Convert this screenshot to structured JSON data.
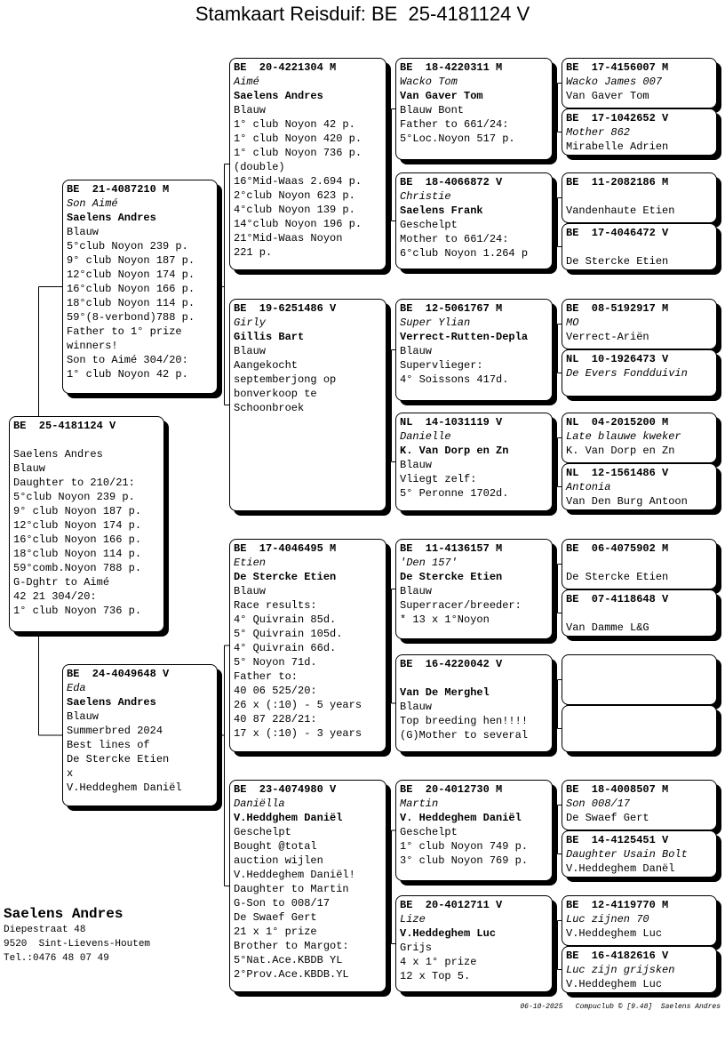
{
  "title": "Stamkaart Reisduif: BE  25-4181124 V",
  "pigeons": [
    {
      "ring": "BE  25-4181124 V",
      "name": "",
      "breeder": "Saelens Andres",
      "color": "Blauw",
      "notes": [
        "Daughter to 210/21:",
        "5°club Noyon 239 p.",
        "9° club Noyon 187 p.",
        "12°club Noyon 174 p.",
        "16°club Noyon 166 p.",
        "18°club Noyon 114 p.",
        "59°comb.Noyon 788 p.",
        "G-Dghtr to Aimé",
        "42 21 304/20:",
        "1° club Noyon 736 p."
      ]
    },
    {
      "ring": "BE  21-4087210 M",
      "name": "Son Aimé",
      "breeder": "Saelens Andres",
      "color": "Blauw",
      "notes": [
        "5°club Noyon 239 p.",
        "9° club Noyon 187 p.",
        "12°club Noyon 174 p.",
        "16°club Noyon 166 p.",
        "18°club Noyon 114 p.",
        "59°(8-verbond)788 p.",
        "Father to 1° prize",
        "winners!",
        "Son to Aimé 304/20:",
        "1° club Noyon 42 p."
      ]
    },
    {
      "ring": "BE  24-4049648 V",
      "name": "Eda",
      "breeder": "Saelens Andres",
      "color": "Blauw",
      "notes": [
        "Summerbred 2024",
        "Best lines of",
        "De Stercke Etien",
        "x",
        "V.Heddeghem Daniël"
      ]
    },
    {
      "ring": "BE  20-4221304 M",
      "name": "Aimé",
      "breeder": "Saelens Andres",
      "color": "Blauw",
      "notes": [
        "1° club Noyon 42 p.",
        "1° club Noyon 420 p.",
        "1° club Noyon 736 p.",
        "(double)",
        "16°Mid-Waas 2.694 p.",
        "2°club Noyon 623 p.",
        "4°club Noyon 139 p.",
        "14°club Noyon 196 p.",
        "21°Mid-Waas Noyon",
        "221 p."
      ]
    },
    {
      "ring": "BE  19-6251486 V",
      "name": "Girly",
      "breeder": "Gillis Bart",
      "color": "Blauw",
      "notes": [
        "Aangekocht",
        "septemberjong op",
        "bonverkoop te",
        "Schoonbroek"
      ]
    },
    {
      "ring": "BE  17-4046495 M",
      "name": "Etien",
      "breeder": "De Stercke Etien",
      "color": "Blauw",
      "notes": [
        "Race results:",
        "4° Quivrain 85d.",
        "5° Quivrain 105d.",
        "4° Quivrain 66d.",
        "5° Noyon 71d.",
        "Father to:",
        "40 06 525/20:",
        "26 x (:10) - 5 years",
        "40 87 228/21:",
        "17 x (:10) - 3 years"
      ]
    },
    {
      "ring": "BE  23-4074980 V",
      "name": "Daniëlla",
      "breeder": "V.Heddghem Daniël",
      "color": "Geschelpt",
      "notes": [
        "Bought @total",
        "auction wijlen",
        "V.Heddeghem Daniël!",
        "Daughter to Martin",
        "G-Son to 008/17",
        "De Swaef Gert",
        "21 x 1° prize",
        "Brother to Margot:",
        "5°Nat.Ace.KBDB YL",
        "2°Prov.Ace.KBDB.YL"
      ]
    },
    {
      "ring": "BE  18-4220311 M",
      "name": "Wacko Tom",
      "breeder": "Van Gaver Tom",
      "color": "Blauw Bont",
      "notes": [
        "Father to 661/24:",
        "5°Loc.Noyon 517 p."
      ]
    },
    {
      "ring": "BE  18-4066872 V",
      "name": "Christie",
      "breeder": "Saelens Frank",
      "color": "Geschelpt",
      "notes": [
        "Mother to 661/24:",
        "6°club Noyon 1.264 p"
      ]
    },
    {
      "ring": "BE  12-5061767 M",
      "name": "Super Ylian",
      "breeder": "Verrect-Rutten-Depla",
      "color": "Blauw",
      "notes": [
        "Supervlieger:",
        "4° Soissons 417d."
      ]
    },
    {
      "ring": "NL  14-1031119 V",
      "name": "Danielle",
      "breeder": "K. Van Dorp en Zn",
      "color": "Blauw",
      "notes": [
        "Vliegt zelf:",
        "5° Peronne 1702d."
      ]
    },
    {
      "ring": "BE  11-4136157 M",
      "name": "'Den 157'",
      "breeder": "De Stercke Etien",
      "color": "Blauw",
      "notes": [
        "Superracer/breeder:",
        "* 13 x 1°Noyon"
      ]
    },
    {
      "ring": "BE  16-4220042 V",
      "name": "",
      "breeder": "Van De Merghel",
      "color": "Blauw",
      "notes": [
        "Top breeding hen!!!!",
        "(G)Mother to several"
      ]
    },
    {
      "ring": "BE  20-4012730 M",
      "name": "Martin",
      "breeder": "V. Heddeghem Daniël",
      "color": "Geschelpt",
      "notes": [
        "1° club Noyon 749 p.",
        "3° club Noyon 769 p."
      ]
    },
    {
      "ring": "BE  20-4012711 V",
      "name": "Lize",
      "breeder": "V.Heddeghem Luc",
      "color": "Grijs",
      "notes": [
        "4 x 1° prize",
        "12 x Top 5."
      ]
    },
    {
      "ring": "BE  17-4156007 M",
      "name": "Wacko James 007",
      "breeder": "Van Gaver Tom"
    },
    {
      "ring": "BE  17-1042652 V",
      "name": "Mother 862",
      "breeder": "Mirabelle Adrien"
    },
    {
      "ring": "BE  11-2082186 M",
      "name": "",
      "breeder": "Vandenhaute Etien"
    },
    {
      "ring": "BE  17-4046472 V",
      "name": "",
      "breeder": "De Stercke Etien"
    },
    {
      "ring": "BE  08-5192917 M",
      "name": "MO",
      "breeder": "Verrect-Ariën"
    },
    {
      "ring": "NL  10-1926473 V",
      "name": "De Evers Fondduivin",
      "breeder": ""
    },
    {
      "ring": "NL  04-2015200 M",
      "name": "Late blauwe kweker",
      "breeder": "K. Van Dorp en Zn"
    },
    {
      "ring": "NL  12-1561486 V",
      "name": "Antonia",
      "breeder": "Van Den Burg Antoon"
    },
    {
      "ring": "BE  06-4075902 M",
      "name": "",
      "breeder": "De Stercke Etien"
    },
    {
      "ring": "BE  07-4118648 V",
      "name": "",
      "breeder": "Van Damme L&G"
    },
    {
      "ring": "",
      "name": "",
      "breeder": ""
    },
    {
      "ring": "",
      "name": "",
      "breeder": ""
    },
    {
      "ring": "BE  18-4008507 M",
      "name": "Son 008/17",
      "breeder": "De Swaef Gert"
    },
    {
      "ring": "BE  14-4125451 V",
      "name": "Daughter Usain Bolt",
      "breeder": "V.Heddeghem Danël"
    },
    {
      "ring": "BE  12-4119770 M",
      "name": "Luc zijnen 70",
      "breeder": "V.Heddeghem Luc"
    },
    {
      "ring": "BE  16-4182616 V",
      "name": "Luc zijn grijsken",
      "breeder": "V.Heddeghem Luc"
    }
  ],
  "owner": {
    "name": "Saelens Andres",
    "street": "Diepestraat 48",
    "city": "9520  Sint-Lievens-Houtem",
    "phone": "Tel.:0476 48 07 49"
  },
  "credits": "06-10-2025   Compuclub © [9.48]  Saelens Andres"
}
